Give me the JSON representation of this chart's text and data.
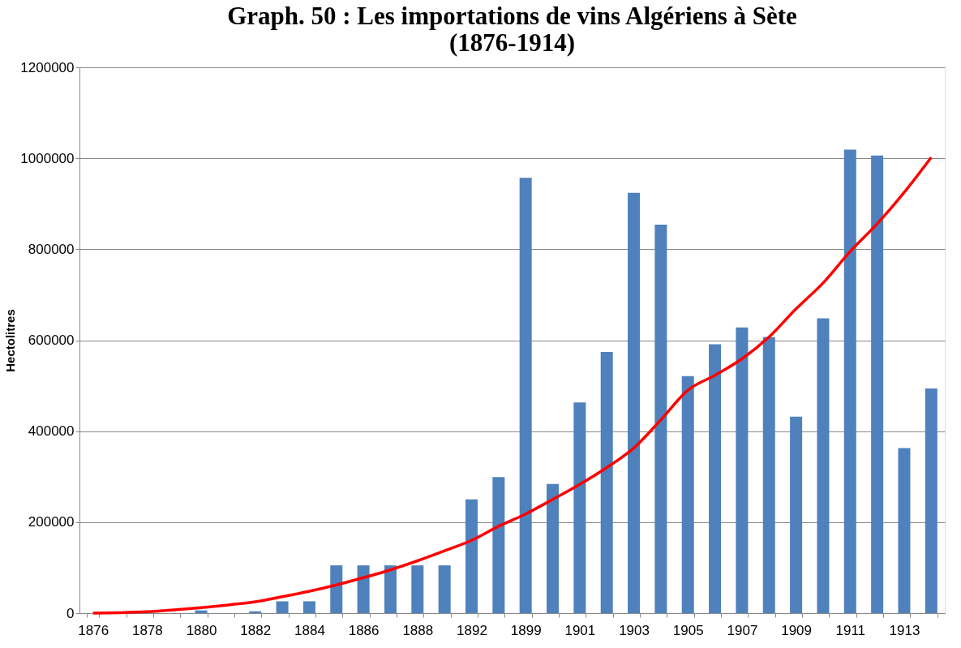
{
  "chart_data": {
    "type": "bar",
    "title": "Graph.  50 : Les importations de vins Algériens à Sète\n(1876-1914)",
    "ylabel": "Hectolitres",
    "categories": [
      "1876",
      null,
      "1878",
      null,
      "1880",
      null,
      "1882",
      null,
      "1884",
      null,
      "1886",
      null,
      "1888",
      null,
      "1892",
      null,
      "1899",
      null,
      "1901",
      null,
      "1903",
      null,
      "1905",
      null,
      "1907",
      null,
      "1909",
      null,
      "1911",
      null,
      "1913",
      null
    ],
    "series": [
      {
        "color": "#4f81bd",
        "values": [
          0,
          0,
          0,
          0,
          6000,
          null,
          4000,
          26000,
          26000,
          105000,
          105000,
          105000,
          105000,
          105000,
          250000,
          299000,
          957000,
          284000,
          463000,
          574000,
          924000,
          854000,
          521000,
          591000,
          628000,
          607000,
          432000,
          648000,
          1019000,
          1006000,
          363000,
          494000
        ]
      },
      {
        "type": "line",
        "color": "#ff0000",
        "values": [
          0,
          1000,
          3000,
          7000,
          12000,
          18000,
          25000,
          36000,
          48000,
          62000,
          78000,
          95000,
          115000,
          137000,
          160000,
          191000,
          218000,
          250000,
          283000,
          320000,
          363000,
          425000,
          490000,
          523000,
          559000,
          607000,
          669000,
          726000,
          795000,
          856000,
          925000,
          1002000
        ]
      }
    ],
    "ylim": [
      0,
      1200000
    ],
    "yticks": [
      0,
      200000,
      400000,
      600000,
      800000,
      1000000,
      1200000
    ],
    "grid": "y"
  }
}
